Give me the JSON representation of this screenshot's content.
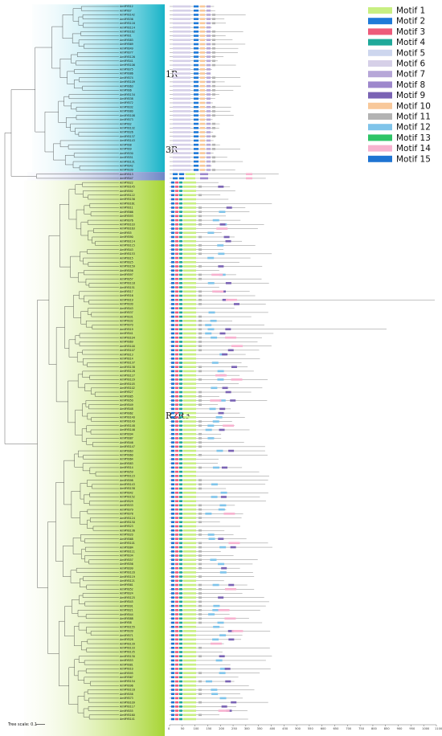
{
  "figure": {
    "groups": [
      {
        "label": "1R",
        "start": 0,
        "end": 39
      },
      {
        "label": "3R",
        "start": 40,
        "end": 41
      },
      {
        "label": "R2R3",
        "start": 42,
        "end": 178
      }
    ],
    "leaves": [
      "AmMYB12",
      "AmMYB7",
      "AmMYB142",
      "AmMYB36",
      "AmMYB116",
      "AmMYB114",
      "AmMYB162",
      "AmMYB1",
      "AmMYB83",
      "AmMYB69",
      "AmMYB49",
      "AmMYB77",
      "AmMYB126",
      "AmMYB41",
      "AmMYB106",
      "AmMYB75",
      "AmMYB86",
      "AmMYB74",
      "AmMYB109",
      "AmMYB63",
      "AmMYB6",
      "AmMYB134",
      "AmMYB38",
      "AmMYB72",
      "AmMYB32",
      "AmMYB80",
      "AmMYB108",
      "AmMYB73",
      "AmMYB2",
      "AmMYB132",
      "AmMYB26",
      "AmMYB137",
      "AmMYB143",
      "AmMYB8",
      "AmMYB9",
      "AmMYB30",
      "AmMYB51",
      "AmMYB131",
      "AmMYB42",
      "AmMYB39",
      "AmMYB13",
      "AmMYB47",
      "AmMYB22",
      "AmMYB145",
      "AmMYB92",
      "AmMYB122",
      "AmMYB156",
      "AmMYB161",
      "AmMYB11",
      "AmMYB66",
      "AmMYB93",
      "AmMYB76",
      "AmMYB103",
      "AmMYB163",
      "AmMYB5",
      "AmMYB90",
      "AmMYB114",
      "AmMYB115",
      "AmMYB43",
      "AmMYB153",
      "AmMYB15",
      "AmMYB25",
      "AmMYB159",
      "AmMYB56",
      "AmMYB97",
      "AmMYB57",
      "AmMYB118",
      "AmMYB151",
      "AmMYB17",
      "AmMYB16",
      "AmMYB19",
      "AmMYB30",
      "AmMYB43",
      "AmMYB37",
      "AmMYB31",
      "AmMYB32",
      "AmMYB70",
      "AmMYB19",
      "AmMYB41",
      "AmMYB104",
      "AmMYB69",
      "AmMYB100",
      "AmMYB107",
      "AmMYB13",
      "AmMYB14",
      "AmMYB137",
      "AmMYB138",
      "AmMYB128",
      "AmMYB127",
      "AmMYB129",
      "AmMYB105",
      "AmMYB102",
      "AmMYB27",
      "AmMYB85",
      "AmMYB50",
      "AmMYB49",
      "AmMYB48",
      "AmMYB62",
      "AmMYB140",
      "AmMYB149",
      "AmMYB148",
      "AmMYB146",
      "AmMYB94",
      "AmMYB87",
      "AmMYB46",
      "AmMYB147",
      "AmMYB63",
      "AmMYB60",
      "AmMYB64",
      "AmMYB83",
      "AmMYB14",
      "AmMYB59",
      "AmMYB123",
      "AmMYB98",
      "AmMYB143",
      "AmMYB158",
      "AmMYB42",
      "AmMYB152",
      "AmMYB29",
      "AmMYB33",
      "AmMYB79",
      "AmMYB78",
      "AmMYB124",
      "AmMYB150",
      "AmMYB23",
      "AmMYB136",
      "AmMYB20",
      "AmMYB68",
      "AmMYB101",
      "AmMYB84",
      "AmMYB111",
      "AmMYB34",
      "AmMYB57",
      "AmMYB56",
      "AmMYB99",
      "AmMYB120",
      "AmMYB119",
      "AmMYB121",
      "AmMYB61",
      "AmMYB52",
      "AmMYB24",
      "AmMYB125",
      "AmMYB45",
      "AmMYB91",
      "AmMYB21",
      "AmMYB44",
      "AmMYB88",
      "AmMYB8",
      "AmMYB155",
      "AmMYB39",
      "AmMYB71",
      "AmMYB28",
      "AmMYB139",
      "AmMYB133",
      "AmMYB135",
      "AmMYB130",
      "AmMYB53",
      "AmMYB81",
      "AmMYB10",
      "AmMYB95",
      "AmMYB67",
      "AmMYB154",
      "AmMYB96",
      "AmMYB116",
      "AmMYB58",
      "AmMYB73",
      "AmMYB109",
      "AmMYB117",
      "AmMYB55",
      "AmMYB160",
      "AmMYB141"
    ],
    "scale_bar": {
      "label": "Tree scale: 0.1"
    },
    "axis_ticks": [
      "0",
      "50",
      "100",
      "150",
      "200",
      "250",
      "300",
      "350",
      "400",
      "450",
      "500",
      "550",
      "600",
      "650",
      "700",
      "750",
      "800",
      "850",
      "900",
      "950",
      "1000",
      "1100"
    ]
  },
  "legend": {
    "items": [
      {
        "label": "Motif 1",
        "color": "#c8ef82"
      },
      {
        "label": "Motif 2",
        "color": "#1f7ad8"
      },
      {
        "label": "Motif 3",
        "color": "#ee5a7a"
      },
      {
        "label": "Motif 4",
        "color": "#1fa99a"
      },
      {
        "label": "Motif 5",
        "color": "#cdd6ee"
      },
      {
        "label": "Motif 6",
        "color": "#d6d0e8"
      },
      {
        "label": "Motif 7",
        "color": "#b7a7d8"
      },
      {
        "label": "Motif 8",
        "color": "#9e88cc"
      },
      {
        "label": "Motif 9",
        "color": "#7a63b4"
      },
      {
        "label": "Motif 10",
        "color": "#f8c89a"
      },
      {
        "label": "Motif 11",
        "color": "#b3b3b3"
      },
      {
        "label": "Motif 12",
        "color": "#7fc4ea"
      },
      {
        "label": "Motif 13",
        "color": "#2ec467"
      },
      {
        "label": "Motif 14",
        "color": "#f7b2cf"
      },
      {
        "label": "Motif 15",
        "color": "#1f74d2"
      }
    ]
  }
}
